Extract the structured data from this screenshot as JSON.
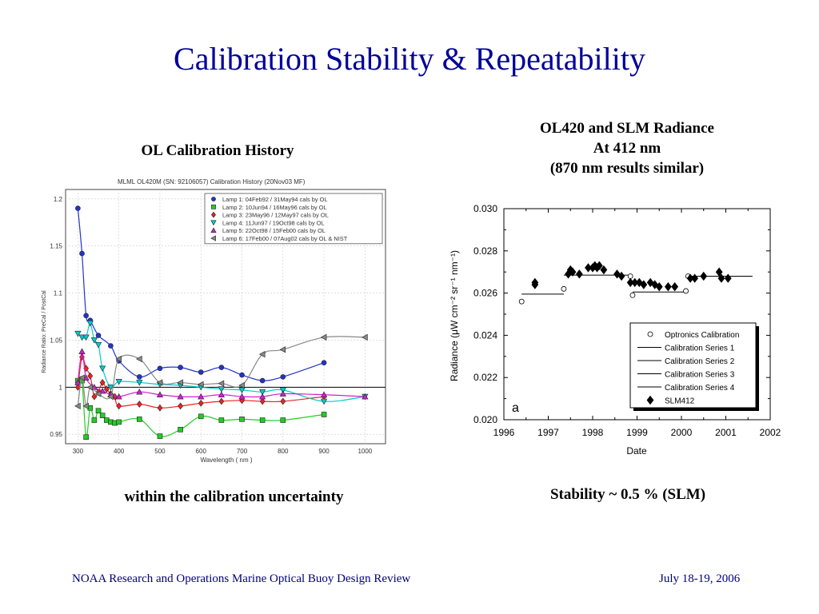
{
  "slide": {
    "title": "Calibration Stability & Repeatability",
    "left_caption": "OL Calibration History",
    "right_caption_lines": [
      "OL420 and SLM Radiance",
      "At 412 nm",
      "(870 nm results similar)"
    ],
    "left_bottom_caption": "within the calibration uncertainty",
    "right_bottom_caption": "Stability ~ 0.5 % (SLM)",
    "footer_left": "NOAA Research and Operations Marine Optical Buoy Design Review",
    "footer_right": "July 18-19, 2006"
  },
  "chart_data": [
    {
      "type": "line",
      "title": "MLML OL420M (SN: 92106057)  Calibration History  (20Nov03 MF)",
      "xlabel": "Wavelength  ( nm )",
      "ylabel": "Radiance Ratio:  PreCal  /  PostCal",
      "xlim": [
        270,
        1050
      ],
      "ylim": [
        0.94,
        1.21
      ],
      "x_ticks": [
        300,
        400,
        500,
        600,
        700,
        800,
        900,
        1000
      ],
      "y_ticks": [
        0.95,
        1,
        1.05,
        1.1,
        1.15,
        1.2
      ],
      "y_tick_labels": [
        "0.95",
        "1",
        "1.05",
        "1.1",
        "1.15",
        "1.2"
      ],
      "reference_line": 1.0,
      "legend_position": "top-right",
      "series": [
        {
          "name": "Lamp 1: 04Feb92 / 31May94 cals by OL",
          "color": "#2233cc",
          "marker": "circle",
          "x": [
            300,
            310,
            320,
            330,
            350,
            380,
            400,
            450,
            500,
            550,
            600,
            650,
            700,
            750,
            800,
            900
          ],
          "y": [
            1.19,
            1.142,
            1.076,
            1.071,
            1.055,
            1.044,
            1.028,
            1.011,
            1.02,
            1.021,
            1.016,
            1.021,
            1.013,
            1.007,
            1.011,
            1.026
          ]
        },
        {
          "name": "Lamp 2: 10Jun94 / 16May96 cals by OL",
          "color": "#22cc22",
          "marker": "square",
          "x": [
            300,
            310,
            320,
            330,
            340,
            350,
            360,
            370,
            380,
            390,
            400,
            450,
            500,
            550,
            600,
            650,
            700,
            750,
            800,
            900
          ],
          "y": [
            1.007,
            1.007,
            0.947,
            0.978,
            0.965,
            0.975,
            0.97,
            0.965,
            0.963,
            0.962,
            0.963,
            0.966,
            0.948,
            0.955,
            0.969,
            0.965,
            0.966,
            0.965,
            0.965,
            0.971
          ]
        },
        {
          "name": "Lamp 3: 23May96 / 12May97 cals by OL",
          "color": "#ee2222",
          "marker": "diamond",
          "x": [
            300,
            310,
            320,
            330,
            340,
            350,
            360,
            370,
            380,
            390,
            400,
            450,
            500,
            550,
            600,
            650,
            700,
            750,
            800,
            900
          ],
          "y": [
            1.0,
            1.032,
            1.02,
            1.012,
            0.99,
            0.995,
            1.005,
            0.998,
            0.993,
            0.99,
            0.98,
            0.982,
            0.978,
            0.98,
            0.983,
            0.985,
            0.986,
            0.985,
            0.985,
            0.99
          ]
        },
        {
          "name": "Lamp 4: 11Jun97 / 19Oct98 cals by OL",
          "color": "#00cccc",
          "marker": "triangle-down",
          "x": [
            300,
            310,
            320,
            330,
            340,
            350,
            360,
            380,
            400,
            450,
            500,
            550,
            600,
            650,
            700,
            750,
            800,
            900,
            1000
          ],
          "y": [
            1.057,
            1.053,
            1.053,
            1.068,
            1.05,
            1.045,
            1.02,
            1.0,
            1.006,
            1.005,
            1.003,
            1.002,
            1.0,
            0.998,
            0.997,
            0.995,
            0.997,
            0.985,
            0.99
          ]
        },
        {
          "name": "Lamp 5: 22Oct98 / 15Feb00 cals by OL",
          "color": "#cc22cc",
          "marker": "triangle-up",
          "x": [
            300,
            310,
            320,
            340,
            360,
            380,
            400,
            450,
            500,
            550,
            600,
            650,
            700,
            750,
            800,
            900,
            1000
          ],
          "y": [
            1.005,
            1.038,
            1.01,
            1.0,
            0.996,
            0.992,
            0.99,
            0.995,
            0.992,
            0.99,
            0.99,
            0.992,
            0.99,
            0.99,
            0.993,
            0.992,
            0.99
          ]
        },
        {
          "name": "Lamp 6: 17Feb00 / 07Aug02 cals by OL & NIST",
          "color": "#888888",
          "marker": "triangle-left",
          "x": [
            300,
            310,
            320,
            330,
            350,
            380,
            400,
            450,
            500,
            550,
            600,
            650,
            700,
            750,
            800,
            900,
            1000
          ],
          "y": [
            0.98,
            1.01,
            0.98,
            1.0,
            0.993,
            0.99,
            1.03,
            1.03,
            1.005,
            1.005,
            1.003,
            1.004,
            1.002,
            1.035,
            1.04,
            1.053,
            1.053
          ]
        }
      ]
    },
    {
      "type": "scatter",
      "panel_label": "a",
      "xlabel": "Date",
      "ylabel": "Radiance (μW cm⁻² sr⁻¹ nm⁻¹)",
      "xlim": [
        1996,
        2002
      ],
      "ylim": [
        0.02,
        0.03
      ],
      "x_ticks": [
        1996,
        1997,
        1998,
        1999,
        2000,
        2001,
        2002
      ],
      "y_ticks": [
        0.02,
        0.022,
        0.024,
        0.026,
        0.028,
        0.03
      ],
      "y_tick_labels": [
        "0.020",
        "0.022",
        "0.024",
        "0.026",
        "0.028",
        "0.030"
      ],
      "legend_position": "bottom-right",
      "legend": [
        "Optronics Calibration",
        "Calibration Series 1",
        "Calibration Series 2",
        "Calibration Series 3",
        "Calibration Series 4",
        "SLM412"
      ],
      "optronics_calibration": {
        "x": [
          1996.4,
          1997.35,
          1998.85,
          1998.9,
          2000.1,
          2000.15
        ],
        "y": [
          0.0256,
          0.0262,
          0.0268,
          0.0259,
          0.0261,
          0.0268
        ]
      },
      "calibration_series": [
        {
          "x": [
            1996.4,
            1997.35
          ],
          "y": [
            0.02595,
            0.02595
          ]
        },
        {
          "x": [
            1997.35,
            1998.85
          ],
          "y": [
            0.02685,
            0.02685
          ]
        },
        {
          "x": [
            1998.9,
            2000.15
          ],
          "y": [
            0.02605,
            0.02605
          ]
        },
        {
          "x": [
            2000.15,
            2001.6
          ],
          "y": [
            0.0268,
            0.0268
          ]
        }
      ],
      "slm412": {
        "x": [
          1996.7,
          1996.7,
          1997.45,
          1997.5,
          1997.55,
          1997.7,
          1997.9,
          1998.0,
          1998.05,
          1998.1,
          1998.15,
          1998.25,
          1998.55,
          1998.65,
          1998.85,
          1998.95,
          1999.05,
          1999.15,
          1999.3,
          1999.4,
          1999.5,
          1999.7,
          1999.85,
          2000.2,
          2000.3,
          2000.5,
          2000.85,
          2000.9,
          2001.05
        ],
        "y": [
          0.0264,
          0.0265,
          0.0269,
          0.0271,
          0.027,
          0.0269,
          0.0272,
          0.0272,
          0.0273,
          0.0272,
          0.0273,
          0.0271,
          0.0269,
          0.0268,
          0.0265,
          0.0265,
          0.0265,
          0.0264,
          0.0265,
          0.0264,
          0.0263,
          0.0263,
          0.0263,
          0.0267,
          0.0267,
          0.0268,
          0.027,
          0.0267,
          0.0267
        ]
      }
    }
  ]
}
